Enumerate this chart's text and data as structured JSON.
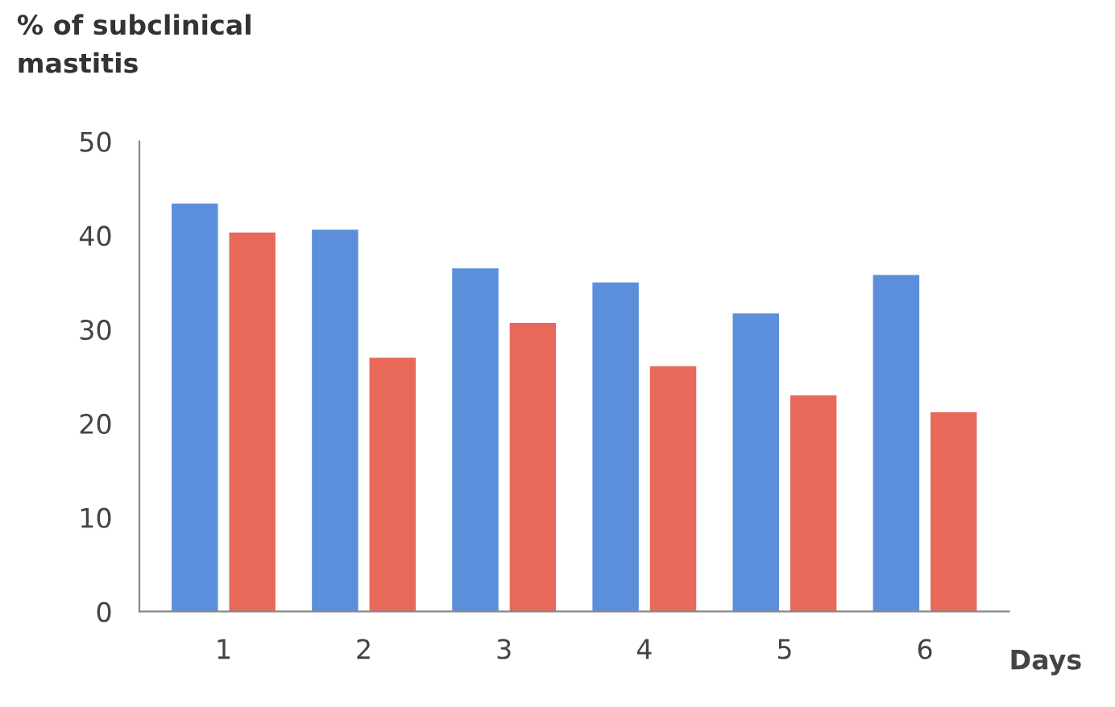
{
  "chart_data": {
    "type": "bar",
    "ylabel": "% of subclinical\nmastitis",
    "xlabel": "Days",
    "categories": [
      "1",
      "2",
      "3",
      "4",
      "5",
      "6"
    ],
    "series": [
      {
        "color": "#5b8fdc",
        "values": [
          43.4,
          40.6,
          36.5,
          35.0,
          31.7,
          35.8
        ]
      },
      {
        "color": "#e8695a",
        "values": [
          40.3,
          27.0,
          30.7,
          26.1,
          23.0,
          21.2
        ]
      }
    ],
    "ylim": [
      0,
      50
    ],
    "yticks": [
      0,
      10,
      20,
      30,
      40,
      50
    ],
    "grid": false,
    "legend": false
  }
}
